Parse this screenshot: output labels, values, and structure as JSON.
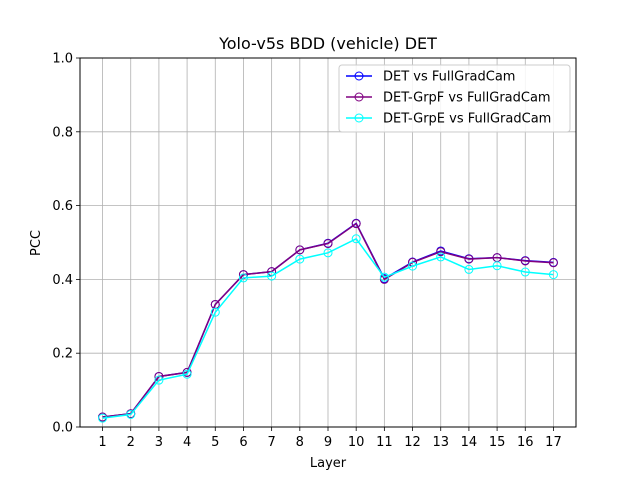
{
  "chart_data": {
    "type": "line",
    "title": "Yolo-v5s BDD (vehicle) DET",
    "xlabel": "Layer",
    "ylabel": "PCC",
    "x": [
      1,
      2,
      3,
      4,
      5,
      6,
      7,
      8,
      9,
      10,
      11,
      12,
      13,
      14,
      15,
      16,
      17
    ],
    "x_tick_labels": [
      "1",
      "2",
      "3",
      "4",
      "5",
      "6",
      "7",
      "8",
      "9",
      "10",
      "11",
      "12",
      "13",
      "14",
      "15",
      "16",
      "17"
    ],
    "ylim": [
      0.0,
      1.0
    ],
    "y_ticks": [
      0.0,
      0.2,
      0.4,
      0.6,
      0.8,
      1.0
    ],
    "y_tick_labels": [
      "0.0",
      "0.2",
      "0.4",
      "0.6",
      "0.8",
      "1.0"
    ],
    "grid": true,
    "legend_position": "top-right",
    "series": [
      {
        "name": "DET vs FullGradCam",
        "color": "#0000ff",
        "marker": "circle-open",
        "values": [
          0.027,
          0.036,
          0.137,
          0.148,
          0.332,
          0.413,
          0.421,
          0.48,
          0.498,
          0.552,
          0.402,
          0.447,
          0.477,
          0.456,
          0.459,
          0.451,
          0.446
        ]
      },
      {
        "name": "DET-GrpF vs FullGradCam",
        "color": "#800080",
        "marker": "circle-open",
        "values": [
          0.027,
          0.036,
          0.137,
          0.148,
          0.332,
          0.413,
          0.421,
          0.48,
          0.497,
          0.551,
          0.4,
          0.446,
          0.475,
          0.455,
          0.459,
          0.45,
          0.445
        ]
      },
      {
        "name": "DET-GrpE vs FullGradCam",
        "color": "#00ffff",
        "marker": "circle-open",
        "values": [
          0.024,
          0.034,
          0.127,
          0.143,
          0.311,
          0.404,
          0.409,
          0.455,
          0.472,
          0.51,
          0.406,
          0.436,
          0.461,
          0.427,
          0.437,
          0.42,
          0.413
        ]
      }
    ]
  }
}
